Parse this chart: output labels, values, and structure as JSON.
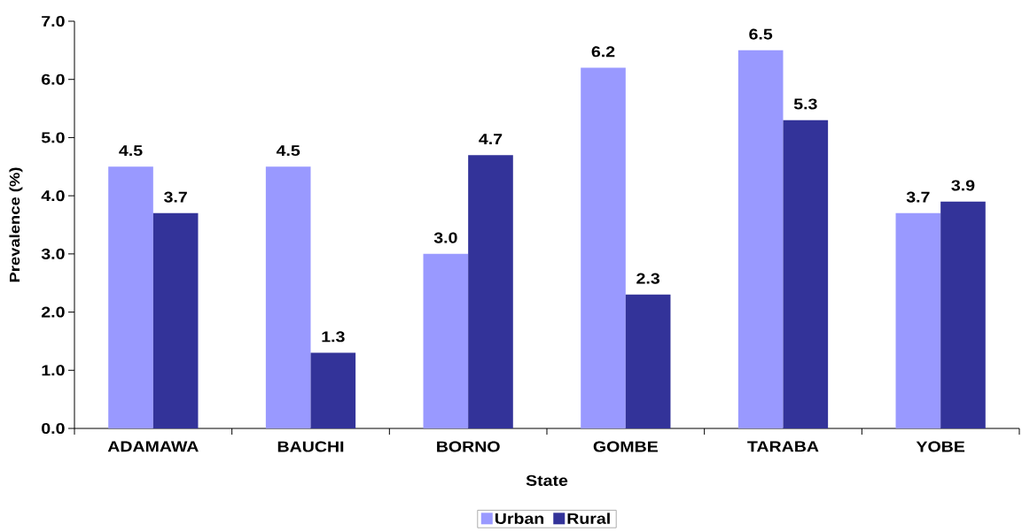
{
  "chart_data": {
    "type": "bar",
    "xlabel": "State",
    "ylabel": "Prevalence (%)",
    "categories": [
      "ADAMAWA",
      "BAUCHI",
      "BORNO",
      "GOMBE",
      "TARABA",
      "YOBE"
    ],
    "series": [
      {
        "name": "Urban",
        "color": "#9999ff",
        "values": [
          4.5,
          4.5,
          3.0,
          6.2,
          6.5,
          3.7
        ],
        "value_labels": [
          "4.5",
          "4.5",
          "3.0",
          "6.2",
          "6.5",
          "3.7"
        ]
      },
      {
        "name": "Rural",
        "color": "#333399",
        "values": [
          3.7,
          1.3,
          4.7,
          2.3,
          5.3,
          3.9
        ],
        "value_labels": [
          "3.7",
          "1.3",
          "4.7",
          "2.3",
          "5.3",
          "3.9"
        ]
      }
    ],
    "ylim": [
      0,
      7
    ],
    "yticks": [
      {
        "value": 0,
        "label": "0.0"
      },
      {
        "value": 1,
        "label": "1.0"
      },
      {
        "value": 2,
        "label": "2.0"
      },
      {
        "value": 3,
        "label": "3.0"
      },
      {
        "value": 4,
        "label": "4.0"
      },
      {
        "value": 5,
        "label": "5.0"
      },
      {
        "value": 6,
        "label": "6.0"
      },
      {
        "value": 7,
        "label": "7.0"
      }
    ],
    "legend": "bottom"
  }
}
